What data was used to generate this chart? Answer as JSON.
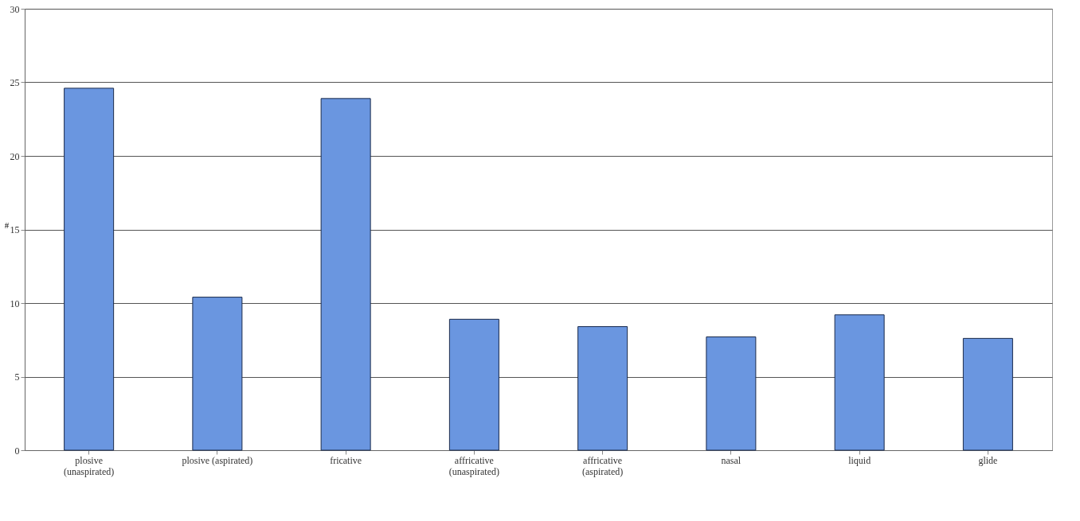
{
  "chart_data": {
    "type": "bar",
    "ylabel": "#",
    "categories": [
      "plosive\n(unaspirated)",
      "plosive (aspirated)",
      "fricative",
      "affricative\n(unaspirated)",
      "affricative\n(aspirated)",
      "nasal",
      "liquid",
      "glide"
    ],
    "values": [
      24.6,
      10.4,
      23.9,
      8.9,
      8.4,
      7.7,
      9.2,
      7.6
    ],
    "color": "#6a96e0",
    "ylim": [
      0,
      30
    ],
    "yticks": [
      0,
      5,
      10,
      15,
      20,
      25,
      30
    ],
    "grid": "y"
  }
}
